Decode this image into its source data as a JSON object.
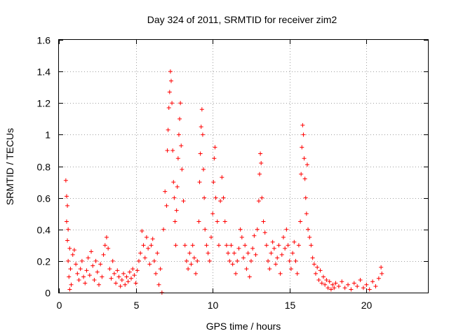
{
  "chart_data": {
    "type": "scatter",
    "title": "Day 324 of 2011, SRMTID for receiver zim2",
    "xlabel": "GPS time / hours",
    "ylabel": "SRMTID / TECUs",
    "xlim": [
      0,
      24
    ],
    "ylim": [
      0,
      1.6
    ],
    "xticks": [
      0,
      5,
      10,
      15,
      20
    ],
    "yticks": [
      0,
      0.2,
      0.4,
      0.6,
      0.8,
      1,
      1.2,
      1.4,
      1.6
    ],
    "xtick_labels": [
      "0",
      "5",
      "10",
      "15",
      "20"
    ],
    "ytick_labels": [
      "0",
      "0.2",
      "0.4",
      "0.6",
      "0.8",
      "1",
      "1.2",
      "1.4",
      "1.6"
    ],
    "grid": true,
    "marker": "+",
    "color": "#ff0000",
    "series": [
      {
        "name": "SRMTID",
        "points": [
          [
            0.45,
            0.71
          ],
          [
            0.5,
            0.61
          ],
          [
            0.55,
            0.55
          ],
          [
            0.5,
            0.45
          ],
          [
            0.6,
            0.4
          ],
          [
            0.55,
            0.33
          ],
          [
            0.7,
            0.28
          ],
          [
            0.6,
            0.2
          ],
          [
            0.75,
            0.15
          ],
          [
            0.65,
            0.1
          ],
          [
            0.8,
            0.05
          ],
          [
            0.7,
            0.02
          ],
          [
            0.9,
            0.24
          ],
          [
            1.0,
            0.27
          ],
          [
            1.1,
            0.18
          ],
          [
            1.2,
            0.12
          ],
          [
            1.3,
            0.08
          ],
          [
            1.4,
            0.15
          ],
          [
            1.5,
            0.2
          ],
          [
            1.6,
            0.1
          ],
          [
            1.7,
            0.06
          ],
          [
            1.8,
            0.14
          ],
          [
            1.9,
            0.22
          ],
          [
            2.0,
            0.11
          ],
          [
            2.1,
            0.26
          ],
          [
            2.2,
            0.17
          ],
          [
            2.3,
            0.08
          ],
          [
            2.4,
            0.2
          ],
          [
            2.5,
            0.13
          ],
          [
            2.6,
            0.05
          ],
          [
            2.7,
            0.18
          ],
          [
            2.8,
            0.1
          ],
          [
            2.9,
            0.24
          ],
          [
            3.0,
            0.3
          ],
          [
            3.1,
            0.35
          ],
          [
            3.2,
            0.28
          ],
          [
            3.3,
            0.15
          ],
          [
            3.4,
            0.09
          ],
          [
            3.5,
            0.2
          ],
          [
            3.6,
            0.12
          ],
          [
            3.7,
            0.06
          ],
          [
            3.8,
            0.14
          ],
          [
            3.9,
            0.1
          ],
          [
            4.0,
            0.04
          ],
          [
            4.1,
            0.08
          ],
          [
            4.2,
            0.12
          ],
          [
            4.3,
            0.05
          ],
          [
            4.4,
            0.1
          ],
          [
            4.5,
            0.07
          ],
          [
            4.6,
            0.13
          ],
          [
            4.7,
            0.09
          ],
          [
            4.8,
            0.15
          ],
          [
            4.9,
            0.11
          ],
          [
            5.0,
            0.06
          ],
          [
            5.1,
            0.14
          ],
          [
            5.2,
            0.2
          ],
          [
            5.3,
            0.25
          ],
          [
            5.4,
            0.39
          ],
          [
            5.5,
            0.3
          ],
          [
            5.6,
            0.22
          ],
          [
            5.7,
            0.35
          ],
          [
            5.8,
            0.28
          ],
          [
            5.9,
            0.18
          ],
          [
            6.0,
            0.3
          ],
          [
            6.1,
            0.34
          ],
          [
            6.2,
            0.2
          ],
          [
            6.3,
            0.12
          ],
          [
            6.4,
            0.25
          ],
          [
            6.5,
            0.05
          ],
          [
            6.6,
            0.15
          ],
          [
            6.7,
            0.0
          ],
          [
            6.8,
            0.4
          ],
          [
            6.9,
            0.64
          ],
          [
            7.0,
            0.55
          ],
          [
            7.05,
            0.9
          ],
          [
            7.1,
            1.03
          ],
          [
            7.15,
            1.17
          ],
          [
            7.2,
            1.27
          ],
          [
            7.25,
            1.4
          ],
          [
            7.3,
            1.34
          ],
          [
            7.35,
            1.2
          ],
          [
            7.4,
            0.9
          ],
          [
            7.45,
            0.7
          ],
          [
            7.5,
            0.6
          ],
          [
            7.55,
            0.45
          ],
          [
            7.6,
            0.3
          ],
          [
            7.65,
            0.52
          ],
          [
            7.7,
            0.67
          ],
          [
            7.75,
            0.85
          ],
          [
            7.8,
            1.0
          ],
          [
            7.85,
            1.1
          ],
          [
            7.9,
            1.2
          ],
          [
            7.95,
            0.93
          ],
          [
            8.0,
            0.78
          ],
          [
            8.1,
            0.58
          ],
          [
            8.2,
            0.3
          ],
          [
            8.3,
            0.2
          ],
          [
            8.4,
            0.15
          ],
          [
            8.5,
            0.25
          ],
          [
            8.6,
            0.18
          ],
          [
            8.7,
            0.3
          ],
          [
            8.8,
            0.22
          ],
          [
            8.9,
            0.12
          ],
          [
            9.0,
            0.2
          ],
          [
            9.1,
            0.45
          ],
          [
            9.15,
            0.7
          ],
          [
            9.2,
            0.88
          ],
          [
            9.25,
            1.05
          ],
          [
            9.3,
            1.16
          ],
          [
            9.35,
            1.0
          ],
          [
            9.4,
            0.78
          ],
          [
            9.45,
            0.6
          ],
          [
            9.5,
            0.4
          ],
          [
            9.6,
            0.3
          ],
          [
            9.7,
            0.25
          ],
          [
            9.8,
            0.2
          ],
          [
            9.9,
            0.35
          ],
          [
            10.0,
            0.5
          ],
          [
            10.05,
            0.7
          ],
          [
            10.1,
            0.85
          ],
          [
            10.15,
            0.92
          ],
          [
            10.2,
            0.6
          ],
          [
            10.3,
            0.45
          ],
          [
            10.4,
            0.3
          ],
          [
            10.5,
            0.58
          ],
          [
            10.6,
            0.73
          ],
          [
            10.7,
            0.6
          ],
          [
            10.8,
            0.45
          ],
          [
            10.9,
            0.3
          ],
          [
            11.0,
            0.25
          ],
          [
            11.1,
            0.2
          ],
          [
            11.2,
            0.3
          ],
          [
            11.3,
            0.18
          ],
          [
            11.4,
            0.25
          ],
          [
            11.5,
            0.12
          ],
          [
            11.6,
            0.2
          ],
          [
            11.7,
            0.28
          ],
          [
            11.8,
            0.4
          ],
          [
            11.9,
            0.35
          ],
          [
            12.0,
            0.22
          ],
          [
            12.1,
            0.3
          ],
          [
            12.2,
            0.15
          ],
          [
            12.3,
            0.25
          ],
          [
            12.4,
            0.1
          ],
          [
            12.5,
            0.2
          ],
          [
            12.6,
            0.28
          ],
          [
            12.7,
            0.36
          ],
          [
            12.8,
            0.24
          ],
          [
            12.9,
            0.4
          ],
          [
            13.0,
            0.58
          ],
          [
            13.05,
            0.75
          ],
          [
            13.1,
            0.88
          ],
          [
            13.15,
            0.82
          ],
          [
            13.2,
            0.6
          ],
          [
            13.3,
            0.45
          ],
          [
            13.4,
            0.38
          ],
          [
            13.5,
            0.3
          ],
          [
            13.6,
            0.2
          ],
          [
            13.7,
            0.15
          ],
          [
            13.8,
            0.25
          ],
          [
            13.9,
            0.32
          ],
          [
            14.0,
            0.28
          ],
          [
            14.1,
            0.18
          ],
          [
            14.2,
            0.22
          ],
          [
            14.3,
            0.3
          ],
          [
            14.4,
            0.12
          ],
          [
            14.5,
            0.24
          ],
          [
            14.6,
            0.35
          ],
          [
            14.7,
            0.28
          ],
          [
            14.8,
            0.4
          ],
          [
            14.9,
            0.3
          ],
          [
            15.0,
            0.2
          ],
          [
            15.1,
            0.15
          ],
          [
            15.2,
            0.25
          ],
          [
            15.3,
            0.32
          ],
          [
            15.4,
            0.2
          ],
          [
            15.5,
            0.12
          ],
          [
            15.6,
            0.3
          ],
          [
            15.7,
            0.45
          ],
          [
            15.75,
            0.75
          ],
          [
            15.8,
            0.92
          ],
          [
            15.85,
            1.06
          ],
          [
            15.9,
            1.0
          ],
          [
            15.95,
            0.85
          ],
          [
            16.0,
            0.72
          ],
          [
            16.05,
            0.6
          ],
          [
            16.1,
            0.5
          ],
          [
            16.15,
            0.81
          ],
          [
            16.2,
            0.4
          ],
          [
            16.3,
            0.35
          ],
          [
            16.4,
            0.3
          ],
          [
            16.5,
            0.22
          ],
          [
            16.6,
            0.18
          ],
          [
            16.7,
            0.12
          ],
          [
            16.8,
            0.16
          ],
          [
            16.9,
            0.08
          ],
          [
            17.0,
            0.14
          ],
          [
            17.1,
            0.06
          ],
          [
            17.2,
            0.1
          ],
          [
            17.3,
            0.05
          ],
          [
            17.4,
            0.08
          ],
          [
            17.5,
            0.03
          ],
          [
            17.6,
            0.07
          ],
          [
            17.7,
            0.02
          ],
          [
            17.8,
            0.05
          ],
          [
            17.9,
            0.03
          ],
          [
            18.0,
            0.06
          ],
          [
            18.2,
            0.04
          ],
          [
            18.4,
            0.07
          ],
          [
            18.6,
            0.03
          ],
          [
            18.8,
            0.05
          ],
          [
            19.0,
            0.02
          ],
          [
            19.2,
            0.06
          ],
          [
            19.4,
            0.04
          ],
          [
            19.6,
            0.08
          ],
          [
            19.8,
            0.03
          ],
          [
            20.0,
            0.05
          ],
          [
            20.2,
            0.02
          ],
          [
            20.4,
            0.07
          ],
          [
            20.6,
            0.04
          ],
          [
            20.8,
            0.09
          ],
          [
            20.95,
            0.16
          ],
          [
            21.0,
            0.12
          ]
        ]
      }
    ]
  }
}
